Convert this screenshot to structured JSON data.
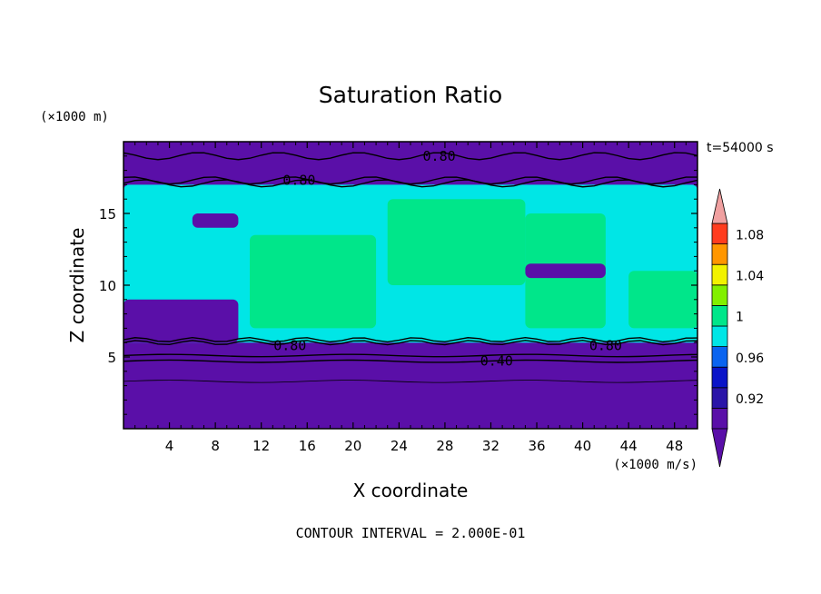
{
  "chart_data": {
    "type": "heatmap",
    "title": "Saturation Ratio",
    "xlabel": "X coordinate",
    "ylabel": "Z coordinate",
    "x_unit": "(×1000 m/s)",
    "y_unit": "(×1000 m)",
    "time_label": "t=54000 s",
    "footer": "CONTOUR INTERVAL = 2.000E-01",
    "xlim": [
      0,
      50
    ],
    "ylim": [
      0,
      20
    ],
    "x_ticks": [
      4,
      8,
      12,
      16,
      20,
      24,
      28,
      32,
      36,
      40,
      44,
      48
    ],
    "y_ticks": [
      5,
      10,
      15
    ],
    "colorbar": {
      "levels": [
        0.9,
        0.92,
        0.94,
        0.96,
        0.98,
        1.0,
        1.02,
        1.04,
        1.06,
        1.08,
        1.1
      ],
      "tick_labels": [
        "0.92",
        "0.96",
        "1",
        "1.04",
        "1.08"
      ],
      "tick_values": [
        0.92,
        0.96,
        1.0,
        1.04,
        1.08
      ],
      "colors": [
        "#5a0fa8",
        "#2a14a8",
        "#0a14c8",
        "#0a64f0",
        "#00e6e6",
        "#00e68a",
        "#82f000",
        "#f2f200",
        "#ff9600",
        "#ff3c1e",
        "#f0a0a0"
      ],
      "extend": "both"
    },
    "contour_labels": [
      {
        "text": "0.80",
        "x": 27.5,
        "z": 19.0
      },
      {
        "text": "0.80",
        "x": 15.3,
        "z": 17.3
      },
      {
        "text": "0.80",
        "x": 14.5,
        "z": 5.8
      },
      {
        "text": "0.80",
        "x": 42.0,
        "z": 5.8
      },
      {
        "text": "0.40",
        "x": 32.5,
        "z": 4.7
      }
    ],
    "regions": [
      {
        "value": 0.9,
        "x": [
          0,
          50
        ],
        "z": [
          0,
          6
        ]
      },
      {
        "value": 0.9,
        "x": [
          0,
          50
        ],
        "z": [
          17,
          20
        ]
      },
      {
        "value": 0.99,
        "x": [
          0,
          50
        ],
        "z": [
          6,
          17
        ]
      },
      {
        "value": 1.01,
        "x": [
          11,
          22
        ],
        "z": [
          7,
          13.5
        ]
      },
      {
        "value": 1.01,
        "x": [
          23,
          35
        ],
        "z": [
          10,
          16
        ]
      },
      {
        "value": 1.01,
        "x": [
          35,
          42
        ],
        "z": [
          7,
          15
        ]
      },
      {
        "value": 1.01,
        "x": [
          44,
          50
        ],
        "z": [
          7,
          11
        ]
      },
      {
        "value": 0.91,
        "x": [
          6,
          10
        ],
        "z": [
          14,
          15
        ]
      },
      {
        "value": 0.91,
        "x": [
          35,
          42
        ],
        "z": [
          10.5,
          11.5
        ]
      },
      {
        "value": 0.91,
        "x": [
          0,
          10
        ],
        "z": [
          6,
          9
        ]
      }
    ]
  }
}
